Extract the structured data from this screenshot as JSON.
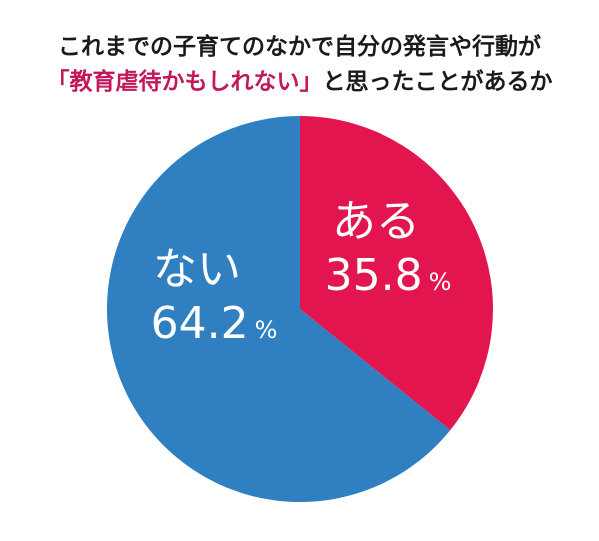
{
  "title": {
    "line1": "これまでの子育てのなかで自分の発言や行動が",
    "line2_highlight": "「教育虐待かもしれない」",
    "line2_rest": "と思ったことがあるか"
  },
  "colors": {
    "aru": "#e3154f",
    "nai": "#2f7fc1",
    "title_accent": "#c2185b",
    "label": "#ffffff"
  },
  "chart_data": {
    "type": "pie",
    "title": "これまでの子育てのなかで自分の発言や行動が「教育虐待かもしれない」と思ったことがあるか",
    "unit": "%",
    "slices": [
      {
        "label": "ある",
        "value": 35.8,
        "value_text": "35.8",
        "color": "#e3154f"
      },
      {
        "label": "ない",
        "value": 64.2,
        "value_text": "64.2",
        "color": "#2f7fc1"
      }
    ]
  }
}
